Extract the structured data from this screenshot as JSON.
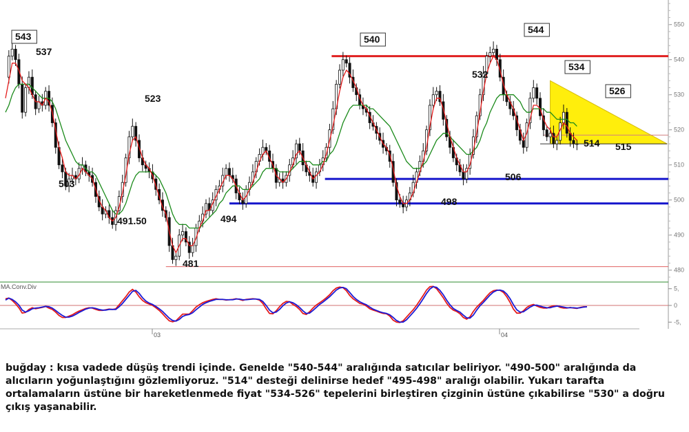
{
  "chart_data": [
    {
      "type": "candlestick",
      "title": "",
      "y_axis_side": "right",
      "ylim": [
        477,
        557
      ],
      "y_ticks": [
        480,
        490,
        500,
        510,
        520,
        530,
        540,
        550
      ],
      "time_labels": [
        "03",
        "04"
      ],
      "grid": false,
      "x": [
        0,
        5,
        10,
        15,
        20,
        25,
        30,
        35,
        40,
        45,
        50,
        55,
        60,
        65,
        70,
        75,
        80,
        85,
        90,
        95,
        100,
        105,
        110,
        115,
        120,
        125,
        130,
        135,
        140,
        145,
        150,
        155,
        160,
        165,
        170,
        175,
        180,
        185,
        190,
        195,
        200,
        205,
        210,
        215,
        220,
        225,
        230,
        235,
        240,
        245,
        250,
        255,
        260,
        265,
        270,
        275,
        280,
        285,
        290,
        295,
        300,
        305,
        310,
        315,
        320,
        325,
        330,
        335,
        340,
        345,
        350,
        355,
        360,
        365,
        370,
        375,
        380,
        385,
        390,
        395,
        400,
        405,
        410,
        415,
        420,
        425,
        430,
        435,
        440,
        445,
        450,
        455,
        460,
        465,
        470,
        475,
        480,
        485,
        490,
        495,
        500,
        505,
        510,
        515,
        520,
        525,
        530,
        535,
        540,
        545,
        550,
        555,
        560,
        565,
        570,
        575,
        580,
        585,
        590,
        595,
        600,
        605,
        610,
        615,
        620,
        625,
        630,
        635,
        640,
        645,
        650,
        655,
        660,
        665,
        670,
        675,
        680,
        685,
        690,
        695,
        700,
        705,
        710,
        715,
        720,
        725,
        730,
        735,
        740,
        745,
        750,
        755,
        760,
        765,
        770,
        775,
        780,
        785,
        790,
        795,
        800,
        805,
        810,
        815,
        820,
        825,
        830,
        835,
        840,
        845,
        850,
        855,
        860,
        865,
        870,
        875,
        880,
        885,
        890,
        895,
        900,
        905,
        910
      ],
      "price": [
        535,
        541,
        543,
        540,
        533,
        525,
        532,
        535,
        530,
        526,
        528,
        527,
        531,
        527,
        522,
        515,
        510,
        508,
        504,
        506,
        507,
        506,
        509,
        510,
        508,
        507,
        505,
        501,
        498,
        496,
        497,
        495,
        493,
        497,
        501,
        505,
        512,
        518,
        521,
        517,
        512,
        510,
        509,
        508,
        506,
        503,
        500,
        497,
        495,
        487,
        483,
        484,
        490,
        491,
        488,
        485,
        487,
        492,
        494,
        496,
        499,
        497,
        500,
        503,
        504,
        507,
        509,
        507,
        506,
        502,
        500,
        499,
        503,
        505,
        508,
        511,
        513,
        515,
        514,
        511,
        509,
        505,
        506,
        505,
        507,
        510,
        512,
        516,
        514,
        510,
        508,
        507,
        505,
        508,
        510,
        512,
        515,
        520,
        526,
        533,
        537,
        540,
        539,
        535,
        532,
        530,
        527,
        526,
        525,
        522,
        521,
        519,
        517,
        515,
        514,
        511,
        505,
        500,
        499,
        498,
        500,
        502,
        505,
        508,
        511,
        514,
        520,
        527,
        530,
        531,
        528,
        523,
        518,
        515,
        512,
        510,
        508,
        506,
        509,
        513,
        518,
        524,
        530,
        536,
        541,
        542,
        543,
        540,
        535,
        530,
        528,
        526,
        524,
        520,
        517,
        515,
        522,
        529,
        532,
        529,
        524,
        520,
        518,
        519,
        516,
        517,
        522,
        525,
        519,
        517,
        516,
        516
      ],
      "ma_fast": [
        529,
        534,
        539,
        539,
        537,
        534,
        533,
        532,
        530,
        528,
        528,
        527,
        529,
        528,
        525,
        520,
        515,
        512,
        508,
        507,
        507,
        506,
        507,
        509,
        508,
        507,
        506,
        503,
        500,
        498,
        497,
        495,
        494,
        495,
        498,
        502,
        507,
        513,
        517,
        518,
        515,
        512,
        510,
        509,
        507,
        504,
        501,
        498,
        496,
        491,
        487,
        485,
        487,
        489,
        489,
        487,
        487,
        489,
        492,
        494,
        497,
        497,
        499,
        501,
        503,
        505,
        507,
        507,
        506,
        504,
        502,
        500,
        501,
        503,
        505,
        508,
        511,
        513,
        514,
        512,
        510,
        507,
        506,
        505,
        506,
        508,
        510,
        513,
        514,
        512,
        510,
        508,
        506,
        507,
        508,
        510,
        513,
        517,
        521,
        526,
        531,
        535,
        537,
        536,
        534,
        532,
        529,
        527,
        526,
        524,
        522,
        520,
        518,
        516,
        515,
        513,
        509,
        504,
        501,
        499,
        499,
        500,
        502,
        505,
        508,
        511,
        515,
        521,
        526,
        529,
        529,
        526,
        522,
        518,
        515,
        512,
        510,
        508,
        508,
        510,
        514,
        519,
        525,
        531,
        536,
        539,
        541,
        540,
        537,
        533,
        530,
        528,
        526,
        523,
        520,
        517,
        519,
        523,
        527,
        527,
        526,
        523,
        521,
        520,
        518,
        518,
        520,
        522,
        521,
        519,
        518,
        517
      ],
      "ma_slow": [
        525,
        527,
        530,
        532,
        533,
        533,
        533,
        533,
        532,
        531,
        530,
        529,
        529,
        529,
        528,
        526,
        523,
        520,
        517,
        515,
        513,
        511,
        510,
        510,
        509,
        508,
        508,
        507,
        505,
        503,
        501,
        499,
        497,
        496,
        496,
        497,
        499,
        502,
        505,
        507,
        508,
        508,
        508,
        508,
        508,
        507,
        506,
        504,
        502,
        499,
        496,
        494,
        493,
        493,
        493,
        492,
        492,
        492,
        492,
        493,
        494,
        495,
        496,
        497,
        499,
        500,
        502,
        503,
        504,
        504,
        504,
        503,
        503,
        503,
        504,
        505,
        506,
        508,
        509,
        509,
        509,
        509,
        508,
        508,
        508,
        508,
        509,
        510,
        511,
        511,
        511,
        511,
        510,
        510,
        510,
        511,
        511,
        513,
        514,
        516,
        519,
        522,
        524,
        526,
        527,
        527,
        527,
        527,
        527,
        526,
        526,
        525,
        524,
        523,
        522,
        521,
        519,
        517,
        515,
        513,
        511,
        510,
        509,
        509,
        509,
        510,
        511,
        513,
        515,
        517,
        518,
        519,
        519,
        518,
        517,
        516,
        515,
        514,
        513,
        513,
        514,
        515,
        517,
        520,
        522,
        525,
        527,
        529,
        530,
        530,
        530,
        530,
        530,
        529,
        528,
        526,
        525,
        525,
        526,
        526,
        526,
        526,
        525,
        525,
        524,
        523,
        523,
        523,
        523,
        522,
        522,
        521
      ],
      "support_levels": [
        {
          "value": 506,
          "label": "506"
        },
        {
          "value": 499
        },
        {
          "value": 481
        }
      ],
      "resistance_levels": [
        {
          "value": 541
        }
      ],
      "triangle": {
        "top_left": 534,
        "top_right": 516,
        "bottom": 516
      },
      "annotations": [
        {
          "text": "543",
          "boxed": true
        },
        {
          "text": "537"
        },
        {
          "text": "503"
        },
        {
          "text": "491.50"
        },
        {
          "text": "523"
        },
        {
          "text": "481"
        },
        {
          "text": "494"
        },
        {
          "text": "540",
          "boxed": true
        },
        {
          "text": "498"
        },
        {
          "text": "532"
        },
        {
          "text": "506"
        },
        {
          "text": "544",
          "boxed": true
        },
        {
          "text": "534",
          "boxed": true
        },
        {
          "text": "526",
          "boxed": true
        },
        {
          "text": "514"
        },
        {
          "text": "515"
        }
      ]
    },
    {
      "type": "line",
      "title": "MA.Conv.Div",
      "ylim": [
        -7,
        7
      ],
      "y_ticks": [
        5,
        0,
        -5
      ],
      "y_tick_labels": [
        "5,",
        "0",
        "-5,"
      ],
      "series": [
        {
          "values": [
            2,
            2.2,
            1.5,
            0.5,
            -0.7,
            -2.3,
            -2.1,
            -1.2,
            -0.7,
            -1,
            -0.8,
            -0.6,
            -0.3,
            -0.8,
            -1.2,
            -2,
            -3,
            -3.6,
            -3.6,
            -3.2,
            -2.8,
            -2.2,
            -1.7,
            -1.3,
            -0.9,
            -0.7,
            -0.8,
            -1.2,
            -1.5,
            -1.5,
            -1.3,
            -1.1,
            -1.2,
            -1,
            0.2,
            1.4,
            2.6,
            4,
            4.8,
            4,
            2.6,
            1.5,
            0.8,
            0.4,
            0,
            -0.7,
            -1.5,
            -2.5,
            -3.6,
            -4.6,
            -4.9,
            -4.6,
            -3.6,
            -2.6,
            -2.6,
            -2.6,
            -1.6,
            -0.5,
            0.2,
            0.8,
            1.2,
            1.5,
            1.8,
            2,
            1.8,
            1.8,
            1.6,
            1.7,
            1.8,
            2,
            1.8,
            1.5,
            1.8,
            1.9,
            2,
            1.9,
            1.6,
            0.6,
            -1,
            -2.4,
            -2.5,
            -1.6,
            -0.4,
            0.6,
            1.2,
            1.1,
            0.3,
            -0.3,
            -1.2,
            -2.4,
            -2.7,
            -1.9,
            -0.8,
            0.1,
            0.8,
            1.5,
            2.3,
            3.2,
            4.4,
            5.2,
            5.5,
            5.3,
            4.4,
            3,
            2,
            1.3,
            0.6,
            0.4,
            -0.2,
            -1,
            -1.4,
            -1.7,
            -2.1,
            -2.4,
            -2.5,
            -3.2,
            -4.4,
            -5,
            -5.1,
            -4.6,
            -3.5,
            -2.4,
            -1.3,
            0,
            1.5,
            3,
            4.6,
            5.6,
            5.7,
            5,
            3.7,
            2.3,
            0.7,
            -0.6,
            -1.4,
            -1.8,
            -2.5,
            -3.6,
            -4.1,
            -3.4,
            -1.8,
            -0.5,
            0.5,
            1.5,
            2.7,
            3.8,
            4.4,
            4.6,
            4.5,
            3.9,
            2.6,
            0.9,
            -1.1,
            -2.3,
            -2.3,
            -1.6,
            -0.6,
            0,
            0.3,
            -0.2,
            -0.6,
            -0.8,
            -0.8,
            -0.4,
            -0.1,
            -0.1,
            -0.6,
            -0.8,
            -0.8,
            -0.6,
            -0.8,
            -0.9,
            -0.6,
            -0.4,
            -0.4
          ]
        },
        {
          "values": [
            1.6,
            2.2,
            1.8,
            1.1,
            0.1,
            -1.4,
            -2,
            -1.6,
            -1,
            -0.8,
            -0.7,
            -0.5,
            -0.3,
            -0.4,
            -0.8,
            -1.5,
            -2.3,
            -3,
            -3.5,
            -3.5,
            -3.2,
            -2.7,
            -2.1,
            -1.6,
            -1.1,
            -0.8,
            -0.7,
            -0.9,
            -1.2,
            -1.4,
            -1.4,
            -1.2,
            -1.2,
            -1.2,
            -0.4,
            0.6,
            1.8,
            3,
            4.2,
            4.5,
            3.6,
            2.3,
            1.3,
            0.7,
            0.3,
            -0.3,
            -1,
            -1.8,
            -2.8,
            -3.8,
            -4.5,
            -4.7,
            -4.2,
            -3.3,
            -2.9,
            -2.7,
            -2.2,
            -1.3,
            -0.5,
            0.3,
            0.8,
            1.2,
            1.5,
            1.8,
            1.8,
            1.8,
            1.7,
            1.7,
            1.7,
            1.9,
            1.9,
            1.7,
            1.7,
            1.8,
            1.9,
            1.9,
            1.8,
            1.2,
            0,
            -1.4,
            -2.2,
            -2,
            -1.2,
            -0.1,
            0.7,
            1.1,
            0.8,
            0.2,
            -0.6,
            -1.6,
            -2.4,
            -2.3,
            -1.5,
            -0.6,
            0.3,
            1,
            1.8,
            2.6,
            3.6,
            4.6,
            5.2,
            5.4,
            5,
            3.9,
            2.7,
            1.8,
            1.1,
            0.6,
            0.2,
            -0.5,
            -1.1,
            -1.5,
            -1.9,
            -2.2,
            -2.4,
            -2.8,
            -3.6,
            -4.5,
            -5,
            -5,
            -4.3,
            -3.2,
            -2.1,
            -0.9,
            0.5,
            2,
            3.6,
            4.9,
            5.6,
            5.4,
            4.5,
            3.2,
            1.6,
            0.2,
            -0.9,
            -1.5,
            -2,
            -2.9,
            -3.7,
            -3.8,
            -2.9,
            -1.4,
            -0.1,
            0.9,
            2,
            3.1,
            4,
            4.5,
            4.6,
            4.3,
            3.4,
            2,
            0.2,
            -1.3,
            -2,
            -1.9,
            -1.2,
            -0.5,
            0,
            0.1,
            -0.2,
            -0.5,
            -0.7,
            -0.7,
            -0.4,
            -0.2,
            -0.3,
            -0.5,
            -0.7,
            -0.7,
            -0.7,
            -0.8,
            -0.7,
            -0.5,
            -0.4
          ]
        }
      ]
    }
  ],
  "commentary": "buğday : kısa vadede düşüş trendi içinde. Genelde \"540-544\" aralığında satıcılar beliriyor. \"490-500\" aralığında da alıcıların yoğunlaştığını gözlemliyoruz. \"514\" desteği delinirse hedef \"495-498\" aralığı olabilir. Yukarı tarafta ortalamaların üstüne bir hareketlenmede fiyat \"534-526\" tepelerini birleştiren çizginin üstüne çıkabilirse \"530\" a doğru çıkış yaşanabilir."
}
